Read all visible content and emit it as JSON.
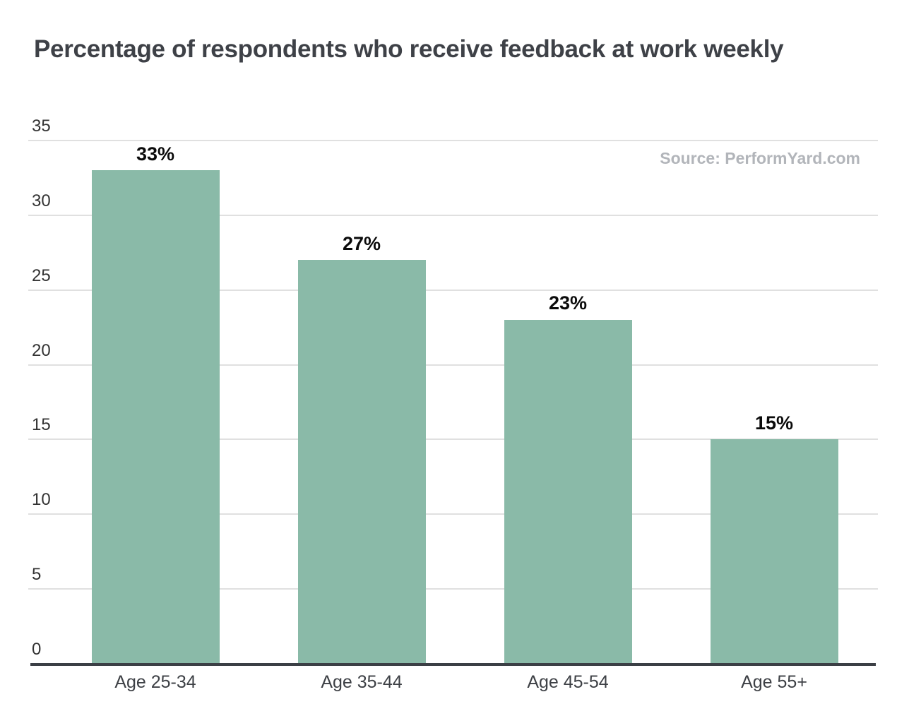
{
  "title": "Percentage of respondents who receive feedback at work weekly",
  "source_attribution": "Source: PerformYard.com",
  "colors": {
    "bar": "#8abaa8",
    "title_text": "#3e4147",
    "axis_line": "#3b3f45",
    "gridline": "#e0e0e0",
    "tick_label": "#333333",
    "category_label": "#3d4045",
    "value_label": "#0b0b0b",
    "source_text": "#b2b5ba",
    "background": "#ffffff"
  },
  "chart_data": {
    "type": "bar",
    "title": "Percentage of respondents who receive feedback at work weekly",
    "source": "Source: PerformYard.com",
    "categories": [
      "Age 25-34",
      "Age 35-44",
      "Age 45-54",
      "Age 55+"
    ],
    "values": [
      33,
      27,
      23,
      15
    ],
    "value_labels": [
      "33%",
      "27%",
      "23%",
      "15%"
    ],
    "xlabel": "",
    "ylabel": "",
    "ylim": [
      0,
      35
    ],
    "y_ticks": [
      0,
      5,
      10,
      15,
      20,
      25,
      30,
      35
    ],
    "grid": "horizontal",
    "legend": "none"
  }
}
